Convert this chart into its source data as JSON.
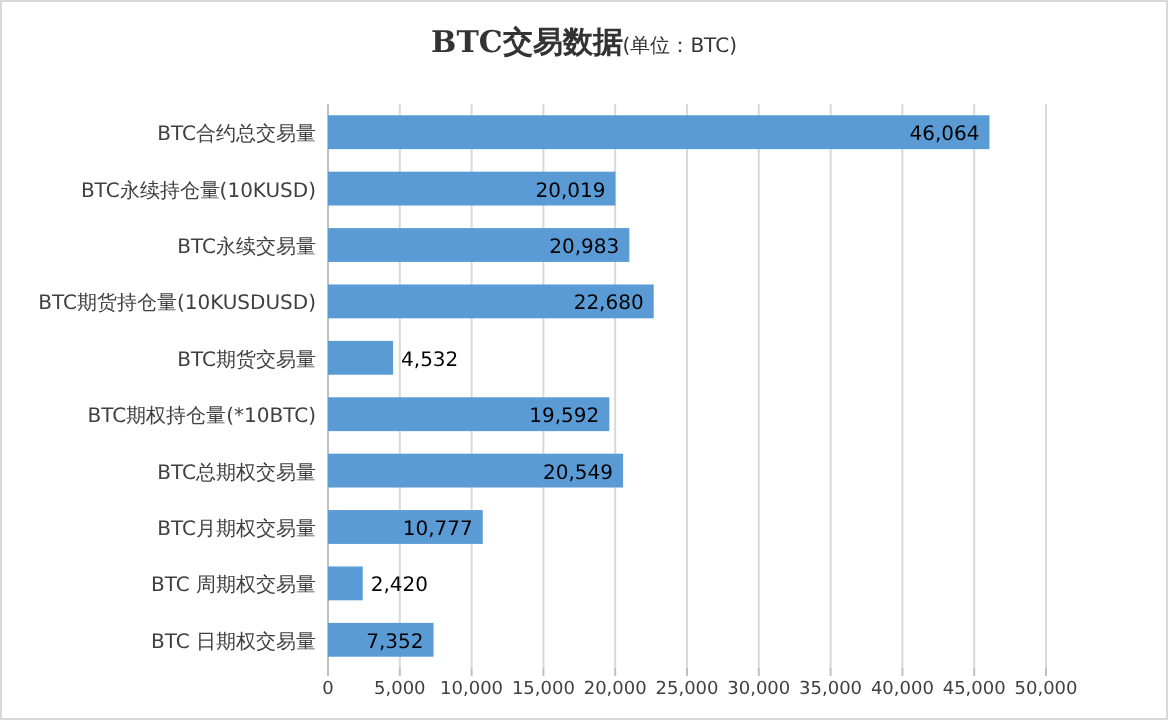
{
  "chart_data": {
    "type": "bar",
    "orientation": "horizontal",
    "title": "BTC交易数据",
    "subtitle": "(单位：BTC)",
    "categories": [
      "BTC合约总交易量",
      "BTC永续持仓量(10KUSD)",
      "BTC永续交易量",
      "BTC期货持仓量(10KUSDUSD)",
      "BTC期货交易量",
      "BTC期权持仓量(*10BTC)",
      "BTC总期权交易量",
      "BTC月期权交易量",
      "BTC  周期权交易量",
      "BTC  日期权交易量"
    ],
    "values": [
      46064,
      20019,
      20983,
      22680,
      4532,
      19592,
      20549,
      10777,
      2420,
      7352
    ],
    "value_labels": [
      "46,064",
      "20,019",
      "20,983",
      "22,680",
      "4,532",
      "19,592",
      "20,549",
      "10,777",
      "2,420",
      "7,352"
    ],
    "color": "#5b9bd5",
    "xlim": [
      0,
      50000
    ],
    "xticks": [
      0,
      {
        "value": 5000,
        "label": "5,000"
      },
      {
        "value": 10000,
        "label": "10,000"
      },
      {
        "value": 15000,
        "label": "15,000"
      },
      {
        "value": 20000,
        "label": "20,000"
      },
      {
        "value": 25000,
        "label": "25,000"
      },
      {
        "value": 30000,
        "label": "30,000"
      },
      {
        "value": 35000,
        "label": "35,000"
      },
      {
        "value": 40000,
        "label": "40,000"
      },
      {
        "value": 45000,
        "label": "45,000"
      },
      {
        "value": 50000,
        "label": "50,000"
      }
    ],
    "grid": "x"
  }
}
